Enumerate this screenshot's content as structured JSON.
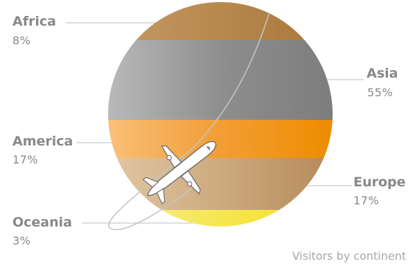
{
  "chart_data": {
    "type": "pie",
    "caption": "Visitors by continent",
    "series": [
      {
        "category": "Africa",
        "value": 8,
        "label": "8%",
        "color": "#b07d45"
      },
      {
        "category": "Asia",
        "value": 55,
        "label": "55%",
        "color": "#8c8c8c"
      },
      {
        "category": "America",
        "value": 17,
        "label": "17%",
        "color": "#f08c00"
      },
      {
        "category": "Europe",
        "value": 17,
        "label": "17%",
        "color": "#c09a6e"
      },
      {
        "category": "Oceania",
        "value": 3,
        "label": "3%",
        "color": "#f4e01c"
      }
    ],
    "decoration": "airplane-on-orbit-path"
  }
}
